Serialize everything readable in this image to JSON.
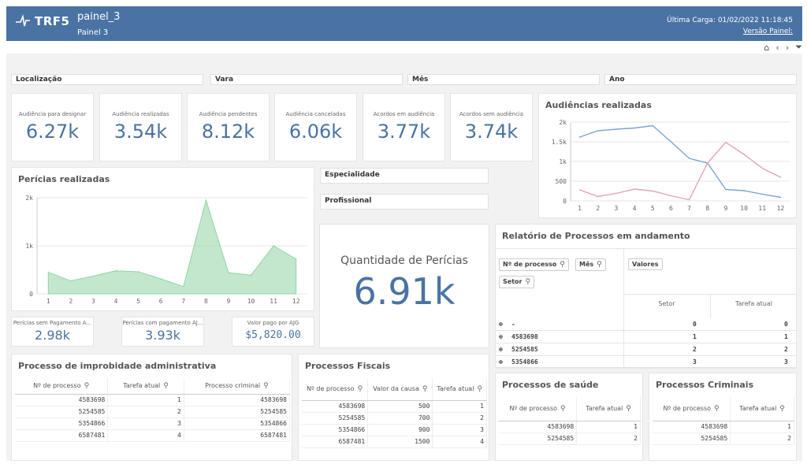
{
  "header": {
    "logo": "TRF5",
    "title": "painel_3",
    "subtitle": "Painel 3",
    "last_load": "Última Carga: 01/02/2022 11:18:45",
    "version_link": "Versão Painel:"
  },
  "toolbar": {
    "home_icon": "home-icon",
    "back_icon": "chevron-left-icon",
    "forward_icon": "chevron-right-icon",
    "filter_icon": "filter-icon"
  },
  "filters": {
    "localizacao": "Localização",
    "vara": "Vara",
    "mes": "Mês",
    "ano": "Ano",
    "especialidade": "Especialidade",
    "profissional": "Profissional"
  },
  "kpis": [
    {
      "label": "Audiência para designar",
      "value": "6.27k"
    },
    {
      "label": "Audiência realizadas",
      "value": "3.54k"
    },
    {
      "label": "Audiência pendentes",
      "value": "8.12k"
    },
    {
      "label": "Audiência canceladas",
      "value": "6.06k"
    },
    {
      "label": "Acordos em audiência",
      "value": "3.77k"
    },
    {
      "label": "Acordos sem audiência",
      "value": "3.74k"
    }
  ],
  "mini_kpis": [
    {
      "label": "Perícias sem Pagamento A...",
      "value": "2.98k"
    },
    {
      "label": "Perícias com pagamento AJ...",
      "value": "3.93k"
    },
    {
      "label": "Valor pago por AJG",
      "value": "$5,820.00"
    }
  ],
  "big_kpi": {
    "label": "Quantidade de Perícias",
    "value": "6.91k"
  },
  "chart_data": [
    {
      "type": "area",
      "title": "Perícias realizadas",
      "x": [
        1,
        2,
        3,
        4,
        5,
        6,
        7,
        8,
        9,
        10,
        11,
        12
      ],
      "x_ticks": [
        "1",
        "2",
        "3",
        "4",
        "5",
        "6",
        "7",
        "8",
        "9",
        "10",
        "11",
        "12"
      ],
      "y_ticks": [
        "0",
        "1k",
        "2k"
      ],
      "ylim": [
        0,
        2000
      ],
      "series": [
        {
          "values": [
            450,
            270,
            370,
            480,
            460,
            310,
            150,
            1950,
            440,
            390,
            1000,
            720
          ],
          "color": "#8fd4a4"
        }
      ],
      "grid": true
    },
    {
      "type": "line",
      "title": "Audiências realizadas",
      "x": [
        1,
        2,
        3,
        4,
        5,
        6,
        7,
        8,
        9,
        10,
        11,
        12
      ],
      "x_ticks": [
        "1",
        "2",
        "3",
        "4",
        "5",
        "6",
        "7",
        "8",
        "9",
        "10",
        "11",
        "12"
      ],
      "y_ticks": [
        "0",
        "500",
        "1k",
        "1.5k",
        "2k"
      ],
      "ylim": [
        0,
        2000
      ],
      "series": [
        {
          "values": [
            1620,
            1780,
            1820,
            1850,
            1910,
            1500,
            1080,
            960,
            290,
            260,
            170,
            90
          ],
          "color": "#7aa4d4"
        },
        {
          "values": [
            280,
            110,
            190,
            300,
            250,
            130,
            30,
            960,
            1490,
            1180,
            830,
            600
          ],
          "color": "#e6a3b4"
        }
      ],
      "grid": true
    }
  ],
  "relatorio": {
    "title": "Relatório de Processos em andamento",
    "dims": [
      "Nº de processo",
      "Mês",
      "Setor"
    ],
    "values_label": "Valores",
    "col_headers": [
      "Setor",
      "Tarefa atual"
    ],
    "rows": [
      {
        "key": "-",
        "setor": "0",
        "tarefa": "0"
      },
      {
        "key": "4583698",
        "setor": "1",
        "tarefa": "1"
      },
      {
        "key": "5254585",
        "setor": "2",
        "tarefa": "2"
      },
      {
        "key": "5354866",
        "setor": "3",
        "tarefa": "3"
      }
    ]
  },
  "improbidade": {
    "title": "Processo de improbidade administrativa",
    "headers": [
      "Nº de processo",
      "Tarefa atual",
      "Processo criminal"
    ],
    "rows": [
      [
        "4583698",
        "1",
        "4583698"
      ],
      [
        "5254585",
        "2",
        "5254585"
      ],
      [
        "5354866",
        "3",
        "5354866"
      ],
      [
        "6587481",
        "4",
        "6587481"
      ]
    ]
  },
  "fiscais": {
    "title": "Processos Fiscais",
    "headers": [
      "Nº de processo",
      "Valor da causa",
      "Tarefa atual"
    ],
    "rows": [
      [
        "4583698",
        "500",
        "1"
      ],
      [
        "5254585",
        "700",
        "2"
      ],
      [
        "5354866",
        "900",
        "3"
      ],
      [
        "6587481",
        "1500",
        "4"
      ]
    ]
  },
  "saude": {
    "title": "Processos de saúde",
    "headers": [
      "Nº de processo",
      "Tarefa atual"
    ],
    "rows": [
      [
        "4583698",
        "1"
      ],
      [
        "5254585",
        "2"
      ]
    ]
  },
  "criminais": {
    "title": "Processos Criminais",
    "headers": [
      "Nº de processo",
      "Tarefa atual"
    ],
    "rows": [
      [
        "4583698",
        "1"
      ],
      [
        "5254585",
        "2"
      ]
    ]
  }
}
